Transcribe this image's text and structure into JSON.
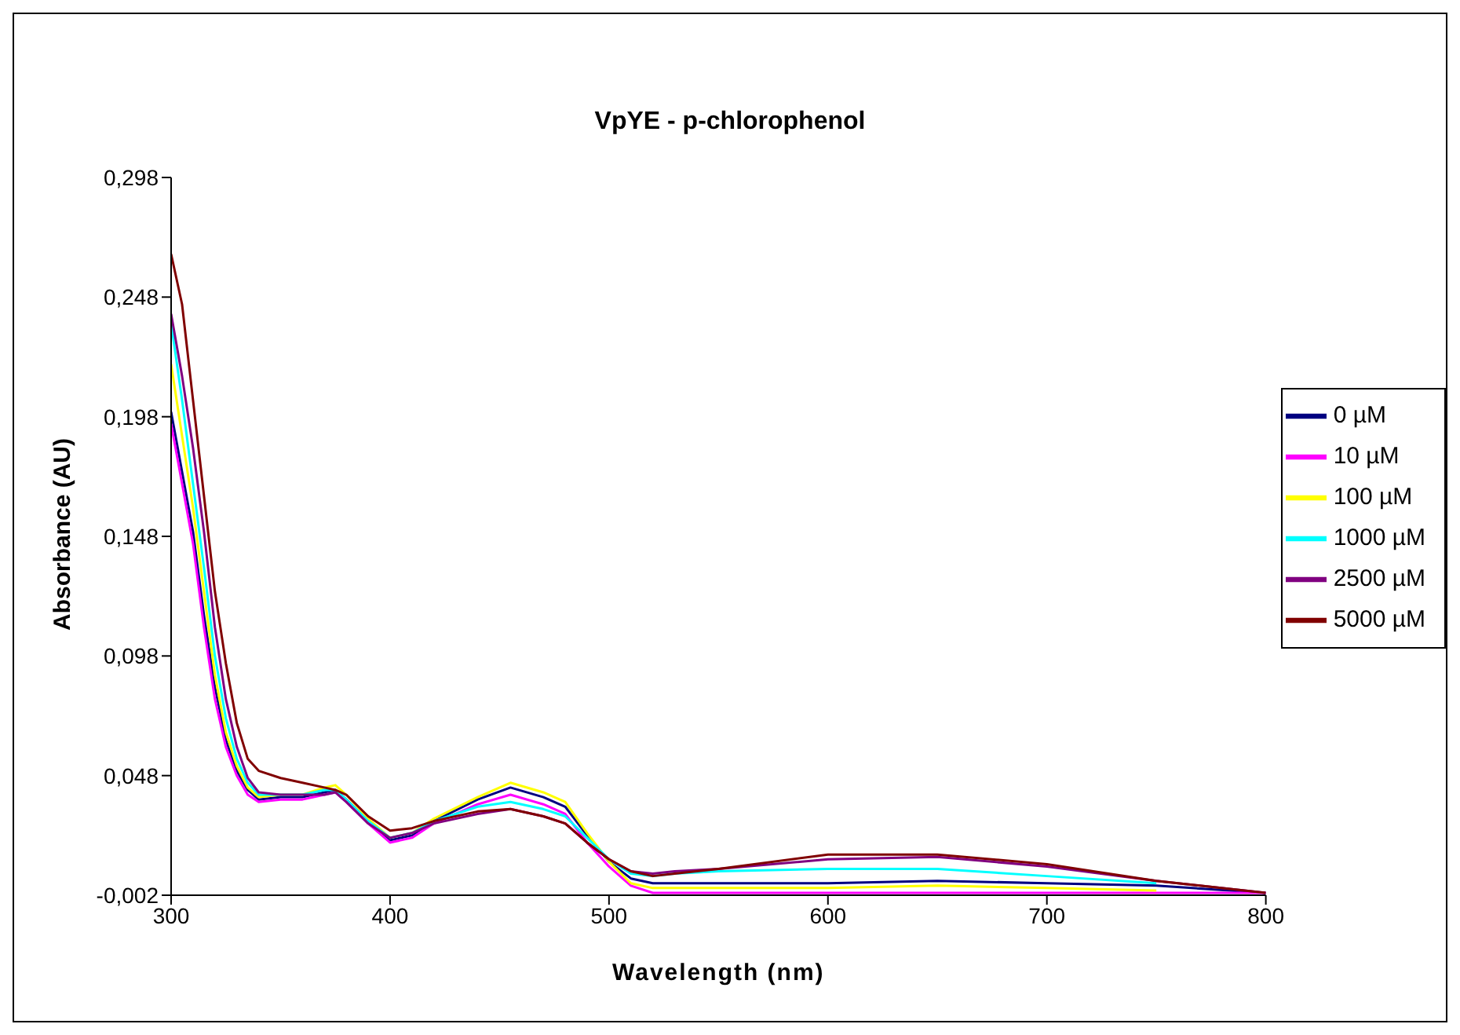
{
  "chart_data": {
    "type": "line",
    "title": "VpYE - p-chlorophenol",
    "xlabel": "Wavelength (nm)",
    "ylabel": "Absorbance (AU)",
    "x": [
      300,
      305,
      310,
      315,
      320,
      325,
      330,
      335,
      340,
      350,
      360,
      370,
      375,
      380,
      390,
      400,
      410,
      420,
      440,
      455,
      470,
      480,
      490,
      500,
      510,
      520,
      530,
      550,
      600,
      650,
      700,
      750,
      800
    ],
    "series": [
      {
        "name": "0 µM",
        "color": "#000080",
        "values": [
          0.2,
          0.175,
          0.15,
          0.115,
          0.085,
          0.063,
          0.05,
          0.042,
          0.038,
          0.039,
          0.039,
          0.041,
          0.042,
          0.038,
          0.029,
          0.021,
          0.023,
          0.029,
          0.038,
          0.043,
          0.039,
          0.035,
          0.023,
          0.012,
          0.005,
          0.003,
          0.003,
          0.003,
          0.003,
          0.004,
          0.003,
          0.002,
          -0.001
        ]
      },
      {
        "name": "10 µM",
        "color": "#ff00ff",
        "values": [
          0.195,
          0.17,
          0.145,
          0.11,
          0.08,
          0.06,
          0.048,
          0.04,
          0.037,
          0.038,
          0.038,
          0.04,
          0.041,
          0.037,
          0.028,
          0.02,
          0.022,
          0.028,
          0.036,
          0.04,
          0.036,
          0.032,
          0.02,
          0.01,
          0.002,
          -0.001,
          -0.001,
          -0.001,
          -0.001,
          -0.001,
          -0.001,
          -0.001,
          -0.001
        ]
      },
      {
        "name": "100 µM",
        "color": "#ffff00",
        "values": [
          0.22,
          0.19,
          0.16,
          0.125,
          0.09,
          0.066,
          0.052,
          0.043,
          0.039,
          0.04,
          0.04,
          0.043,
          0.044,
          0.04,
          0.03,
          0.022,
          0.024,
          0.03,
          0.039,
          0.045,
          0.041,
          0.037,
          0.024,
          0.012,
          0.003,
          0.001,
          0.001,
          0.001,
          0.001,
          0.002,
          0.001,
          0.0,
          null
        ]
      },
      {
        "name": "1000 µM",
        "color": "#00ffff",
        "values": [
          0.237,
          0.205,
          0.17,
          0.135,
          0.098,
          0.072,
          0.055,
          0.045,
          0.04,
          0.04,
          0.04,
          0.042,
          0.042,
          0.038,
          0.029,
          0.022,
          0.024,
          0.029,
          0.035,
          0.037,
          0.034,
          0.031,
          0.022,
          0.013,
          0.007,
          0.006,
          0.007,
          0.008,
          0.009,
          0.009,
          0.006,
          0.003,
          null
        ]
      },
      {
        "name": "2500 µM",
        "color": "#800080",
        "values": [
          0.241,
          0.215,
          0.185,
          0.15,
          0.11,
          0.08,
          0.06,
          0.047,
          0.041,
          0.04,
          0.04,
          0.04,
          0.041,
          0.037,
          0.028,
          0.022,
          0.024,
          0.028,
          0.032,
          0.034,
          0.031,
          0.028,
          0.02,
          0.013,
          0.008,
          0.007,
          0.008,
          0.009,
          0.013,
          0.014,
          0.01,
          0.004,
          -0.001
        ]
      },
      {
        "name": "5000 µM",
        "color": "#800000",
        "values": [
          0.266,
          0.245,
          0.205,
          0.165,
          0.125,
          0.095,
          0.07,
          0.055,
          0.05,
          0.047,
          0.045,
          0.043,
          0.042,
          0.04,
          0.031,
          0.025,
          0.026,
          0.029,
          0.033,
          0.034,
          0.031,
          0.028,
          0.02,
          0.013,
          0.008,
          0.006,
          0.007,
          0.009,
          0.015,
          0.015,
          0.011,
          0.004,
          -0.001
        ]
      }
    ],
    "xlim": [
      300,
      800
    ],
    "xticks": [
      300,
      400,
      500,
      600,
      700,
      800
    ],
    "ylim": [
      -0.002,
      0.298
    ],
    "yticks": [
      {
        "value": -0.002,
        "label": "-0,002"
      },
      {
        "value": 0.048,
        "label": "0,048"
      },
      {
        "value": 0.098,
        "label": "0,098"
      },
      {
        "value": 0.148,
        "label": "0,148"
      },
      {
        "value": 0.198,
        "label": "0,198"
      },
      {
        "value": 0.248,
        "label": "0,248"
      },
      {
        "value": 0.298,
        "label": "0,298"
      }
    ],
    "grid": false,
    "legend": "right",
    "marker": "none",
    "line_style": "solid"
  }
}
